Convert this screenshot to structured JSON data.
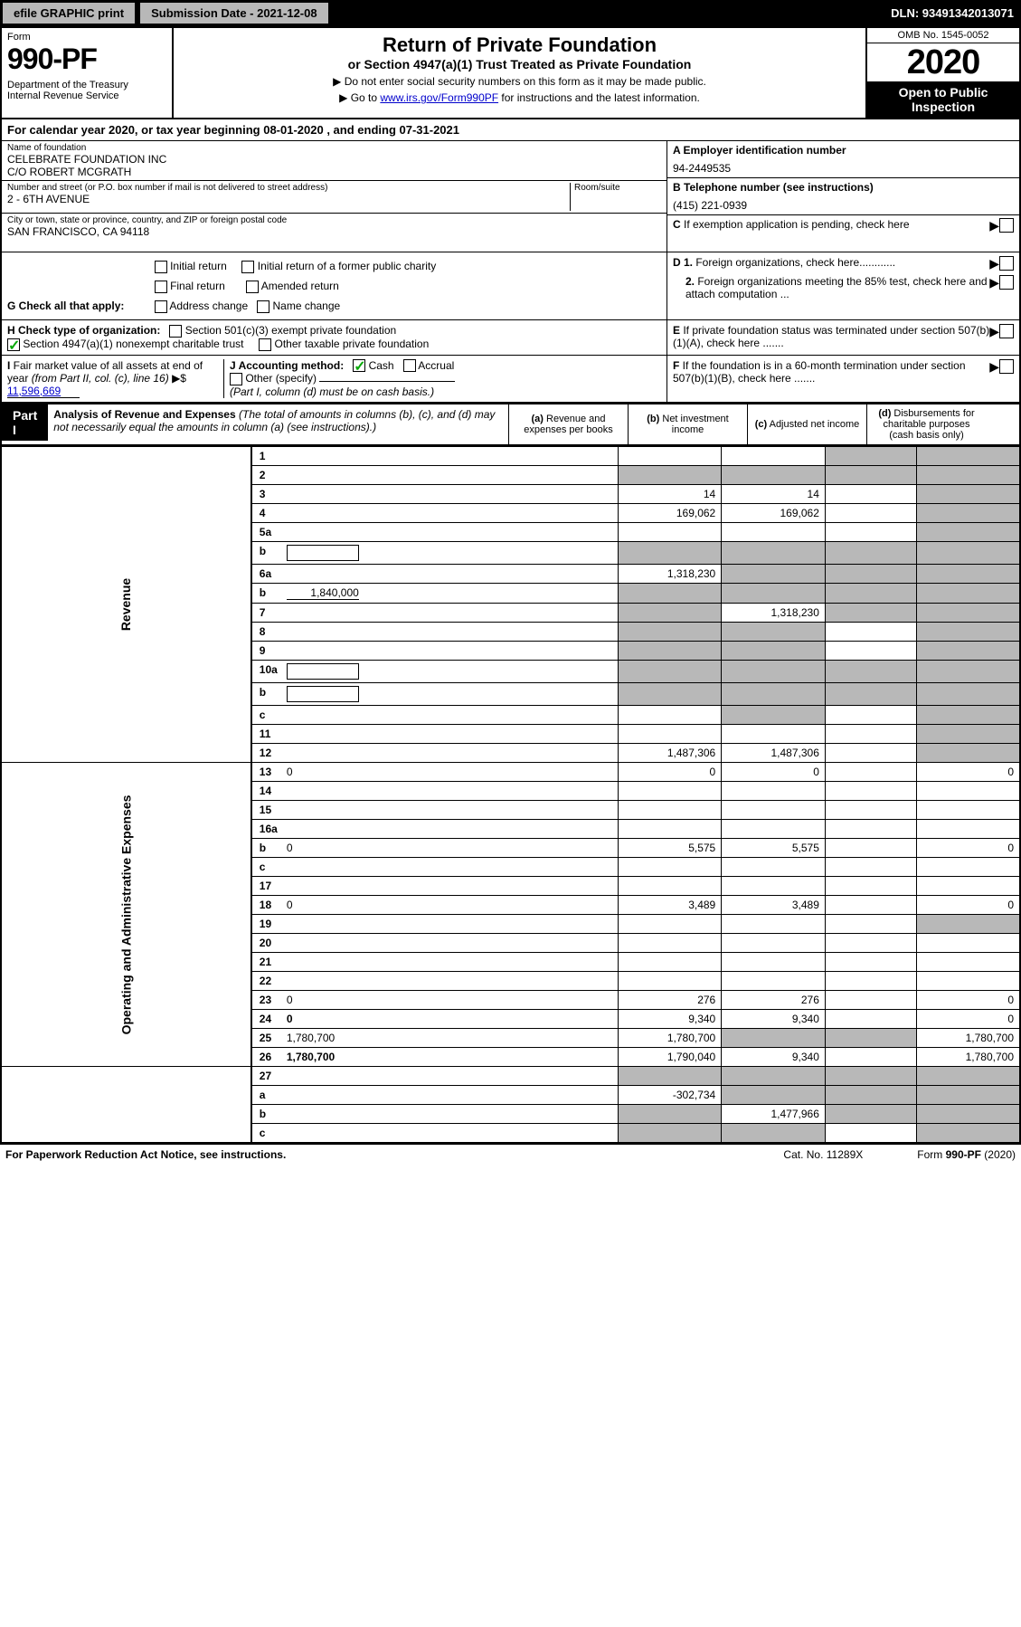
{
  "top": {
    "efile": "efile GRAPHIC print",
    "sub_date_label": "Submission Date - 2021-12-08",
    "dln": "DLN: 93491342013071"
  },
  "header": {
    "form_label": "Form",
    "form_num": "990-PF",
    "dept": "Department of the Treasury\nInternal Revenue Service",
    "title": "Return of Private Foundation",
    "subtitle": "or Section 4947(a)(1) Trust Treated as Private Foundation",
    "note1": "▶ Do not enter social security numbers on this form as it may be made public.",
    "note2_pre": "▶ Go to ",
    "note2_link": "www.irs.gov/Form990PF",
    "note2_post": " for instructions and the latest information.",
    "omb": "OMB No. 1545-0052",
    "year": "2020",
    "open": "Open to Public Inspection"
  },
  "cal": {
    "line": "For calendar year 2020, or tax year beginning 08-01-2020              , and ending 07-31-2021"
  },
  "entity": {
    "name_label": "Name of foundation",
    "name1": "CELEBRATE FOUNDATION INC",
    "name2": "C/O ROBERT MCGRATH",
    "addr_label": "Number and street (or P.O. box number if mail is not delivered to street address)",
    "room_label": "Room/suite",
    "addr": "2 - 6TH AVENUE",
    "city_label": "City or town, state or province, country, and ZIP or foreign postal code",
    "city": "SAN FRANCISCO, CA  94118",
    "ein_label": "A Employer identification number",
    "ein": "94-2449535",
    "tel_label": "B Telephone number (see instructions)",
    "tel": "(415) 221-0939",
    "c_label": "C If exemption application is pending, check here"
  },
  "checks": {
    "g_label": "G Check all that apply:",
    "g_opts": [
      "Initial return",
      "Initial return of a former public charity",
      "Final return",
      "Amended return",
      "Address change",
      "Name change"
    ],
    "h_label": "H Check type of organization:",
    "h_501c3": "Section 501(c)(3) exempt private foundation",
    "h_4947": "Section 4947(a)(1) nonexempt charitable trust",
    "h_other": "Other taxable private foundation",
    "i_label": "I Fair market value of all assets at end of year (from Part II, col. (c), line 16) ▶$",
    "i_val": "11,596,669",
    "j_label": "J Accounting method:",
    "j_cash": "Cash",
    "j_accrual": "Accrual",
    "j_other": "Other (specify)",
    "j_note": "(Part I, column (d) must be on cash basis.)",
    "d1": "D 1. Foreign organizations, check here............",
    "d2": "2. Foreign organizations meeting the 85% test, check here and attach computation ...",
    "e": "E If private foundation status was terminated under section 507(b)(1)(A), check here .......",
    "f": "F If the foundation is in a 60-month termination under section 507(b)(1)(B), check here .......",
    "arrow": "▶"
  },
  "part1": {
    "label": "Part I",
    "title": "Analysis of Revenue and Expenses",
    "title_note": "(The total of amounts in columns (b), (c), and (d) may not necessarily equal the amounts in column (a) (see instructions).)",
    "col_a": "(a) Revenue and expenses per books",
    "col_b": "(b) Net investment income",
    "col_c": "(c) Adjusted net income",
    "col_d": "(d) Disbursements for charitable purposes (cash basis only)"
  },
  "side_labels": {
    "revenue": "Revenue",
    "expenses": "Operating and Administrative Expenses"
  },
  "rows": [
    {
      "n": "1",
      "d": "",
      "a": "",
      "b": "",
      "c": "",
      "sh_c": true,
      "sh_d": true
    },
    {
      "n": "2",
      "d": "",
      "a": "",
      "b": "",
      "c": "",
      "sh_a": true,
      "sh_b": true,
      "sh_c": true,
      "sh_d": true,
      "bold_not": true
    },
    {
      "n": "3",
      "d": "",
      "a": "14",
      "b": "14",
      "c": "",
      "sh_d": true
    },
    {
      "n": "4",
      "d": "",
      "a": "169,062",
      "b": "169,062",
      "c": "",
      "sh_d": true
    },
    {
      "n": "5a",
      "d": "",
      "a": "",
      "b": "",
      "c": "",
      "sh_d": true
    },
    {
      "n": "b",
      "d": "",
      "a": "",
      "b": "",
      "c": "",
      "has_box": true,
      "sh_a": true,
      "sh_b": true,
      "sh_c": true,
      "sh_d": true
    },
    {
      "n": "6a",
      "d": "",
      "a": "1,318,230",
      "b": "",
      "c": "",
      "sh_b": true,
      "sh_c": true,
      "sh_d": true
    },
    {
      "n": "b",
      "d": "",
      "a": "",
      "b": "",
      "c": "",
      "val_inline": "1,840,000",
      "sh_a": true,
      "sh_b": true,
      "sh_c": true,
      "sh_d": true
    },
    {
      "n": "7",
      "d": "",
      "a": "",
      "b": "1,318,230",
      "c": "",
      "sh_a": true,
      "sh_c": true,
      "sh_d": true
    },
    {
      "n": "8",
      "d": "",
      "a": "",
      "b": "",
      "c": "",
      "sh_a": true,
      "sh_b": true,
      "sh_d": true
    },
    {
      "n": "9",
      "d": "",
      "a": "",
      "b": "",
      "c": "",
      "sh_a": true,
      "sh_b": true,
      "sh_d": true
    },
    {
      "n": "10a",
      "d": "",
      "a": "",
      "b": "",
      "c": "",
      "has_box": true,
      "sh_a": true,
      "sh_b": true,
      "sh_c": true,
      "sh_d": true
    },
    {
      "n": "b",
      "d": "",
      "a": "",
      "b": "",
      "c": "",
      "has_box": true,
      "sh_a": true,
      "sh_b": true,
      "sh_c": true,
      "sh_d": true
    },
    {
      "n": "c",
      "d": "",
      "a": "",
      "b": "",
      "c": "",
      "sh_b": true,
      "sh_d": true
    },
    {
      "n": "11",
      "d": "",
      "a": "",
      "b": "",
      "c": "",
      "sh_d": true
    },
    {
      "n": "12",
      "d": "",
      "a": "1,487,306",
      "b": "1,487,306",
      "c": "",
      "bold": true,
      "sh_d": true
    }
  ],
  "exp_rows": [
    {
      "n": "13",
      "d": "0",
      "a": "0",
      "b": "0",
      "c": ""
    },
    {
      "n": "14",
      "d": "",
      "a": "",
      "b": "",
      "c": ""
    },
    {
      "n": "15",
      "d": "",
      "a": "",
      "b": "",
      "c": ""
    },
    {
      "n": "16a",
      "d": "",
      "a": "",
      "b": "",
      "c": ""
    },
    {
      "n": "b",
      "d": "0",
      "a": "5,575",
      "b": "5,575",
      "c": ""
    },
    {
      "n": "c",
      "d": "",
      "a": "",
      "b": "",
      "c": ""
    },
    {
      "n": "17",
      "d": "",
      "a": "",
      "b": "",
      "c": ""
    },
    {
      "n": "18",
      "d": "0",
      "a": "3,489",
      "b": "3,489",
      "c": ""
    },
    {
      "n": "19",
      "d": "",
      "a": "",
      "b": "",
      "c": "",
      "sh_d": true
    },
    {
      "n": "20",
      "d": "",
      "a": "",
      "b": "",
      "c": ""
    },
    {
      "n": "21",
      "d": "",
      "a": "",
      "b": "",
      "c": ""
    },
    {
      "n": "22",
      "d": "",
      "a": "",
      "b": "",
      "c": ""
    },
    {
      "n": "23",
      "d": "0",
      "a": "276",
      "b": "276",
      "c": ""
    },
    {
      "n": "24",
      "d": "0",
      "a": "9,340",
      "b": "9,340",
      "c": "",
      "bold": true,
      "two_line": true
    },
    {
      "n": "25",
      "d": "1,780,700",
      "a": "1,780,700",
      "b": "",
      "c": "",
      "sh_b": true,
      "sh_c": true
    },
    {
      "n": "26",
      "d": "1,780,700",
      "a": "1,790,040",
      "b": "9,340",
      "c": "",
      "bold": true
    }
  ],
  "bottom_rows": [
    {
      "n": "27",
      "d": "",
      "a": "",
      "b": "",
      "c": "",
      "sh_a": true,
      "sh_b": true,
      "sh_c": true,
      "sh_d": true
    },
    {
      "n": "a",
      "d": "",
      "a": "-302,734",
      "b": "",
      "c": "",
      "bold": true,
      "sh_b": true,
      "sh_c": true,
      "sh_d": true
    },
    {
      "n": "b",
      "d": "",
      "a": "",
      "b": "1,477,966",
      "c": "",
      "bold": true,
      "sh_a": true,
      "sh_c": true,
      "sh_d": true
    },
    {
      "n": "c",
      "d": "",
      "a": "",
      "b": "",
      "c": "",
      "bold": true,
      "sh_a": true,
      "sh_b": true,
      "sh_d": true
    }
  ],
  "footer": {
    "pra": "For Paperwork Reduction Act Notice, see instructions.",
    "cat": "Cat. No. 11289X",
    "form": "Form 990-PF (2020)"
  }
}
